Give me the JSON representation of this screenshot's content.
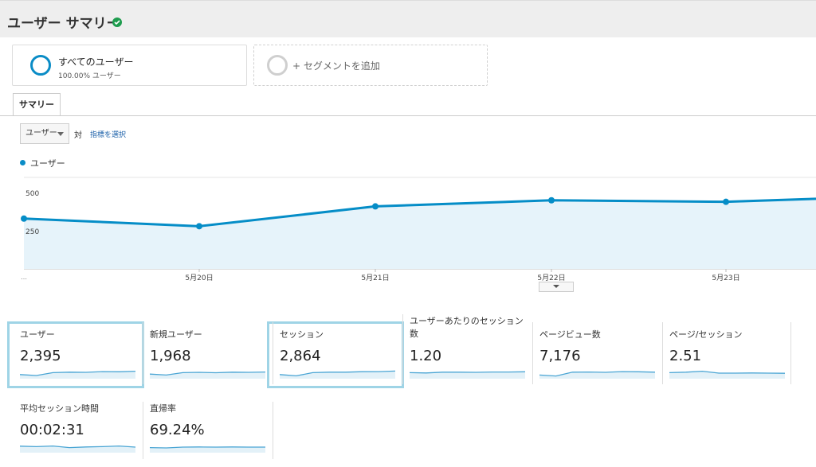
{
  "header": {
    "title": "ユーザー サマリー",
    "verified_icon": "check-circle-icon"
  },
  "segments": [
    {
      "name": "すべてのユーザー",
      "sub": "100.00% ユーザー"
    },
    {
      "name": "+ セグメントを追加"
    }
  ],
  "tabs": [
    {
      "label": "サマリー"
    }
  ],
  "controls": {
    "metric": "ユーザー",
    "versus": "対",
    "pick_metric": "指標を選択"
  },
  "chart_data": {
    "type": "area",
    "series": [
      {
        "name": "ユーザー",
        "values": [
          330,
          280,
          410,
          450,
          440,
          460
        ]
      }
    ],
    "x": [
      "",
      "5月20日",
      "5月21日",
      "5月22日",
      "5月23日",
      ""
    ],
    "y_ticks": [
      "500",
      "250"
    ],
    "ylim": [
      0,
      600
    ],
    "grid": true,
    "color": "#058dc7"
  },
  "metrics": [
    {
      "name": "ユーザー",
      "value": "2,395",
      "highlight": true,
      "spark": [
        0.35,
        0.25,
        0.55,
        0.6,
        0.58,
        0.66,
        0.64,
        0.7
      ]
    },
    {
      "name": "新規ユーザー",
      "value": "1,968",
      "highlight": false,
      "spark": [
        0.4,
        0.3,
        0.55,
        0.58,
        0.54,
        0.6,
        0.58,
        0.62
      ]
    },
    {
      "name": "セッション",
      "value": "2,864",
      "highlight": true,
      "spark": [
        0.35,
        0.22,
        0.55,
        0.6,
        0.6,
        0.65,
        0.66,
        0.72
      ]
    },
    {
      "name": "ユーザーあたりのセッション数",
      "value": "1.20",
      "highlight": false,
      "spark": [
        0.55,
        0.52,
        0.6,
        0.6,
        0.58,
        0.62,
        0.62,
        0.64
      ]
    },
    {
      "name": "ページビュー数",
      "value": "7,176",
      "highlight": false,
      "spark": [
        0.3,
        0.2,
        0.6,
        0.62,
        0.58,
        0.66,
        0.64,
        0.6
      ]
    },
    {
      "name": "ページ/セッション",
      "value": "2.51",
      "highlight": false,
      "spark": [
        0.55,
        0.6,
        0.7,
        0.5,
        0.5,
        0.52,
        0.5,
        0.48
      ]
    },
    {
      "name": "平均セッション時間",
      "value": "00:02:31",
      "highlight": false,
      "spark": [
        0.6,
        0.55,
        0.62,
        0.45,
        0.52,
        0.55,
        0.62,
        0.5
      ]
    },
    {
      "name": "直帰率",
      "value": "69.24%",
      "highlight": false,
      "spark": [
        0.45,
        0.42,
        0.5,
        0.52,
        0.5,
        0.52,
        0.5,
        0.5
      ]
    }
  ]
}
